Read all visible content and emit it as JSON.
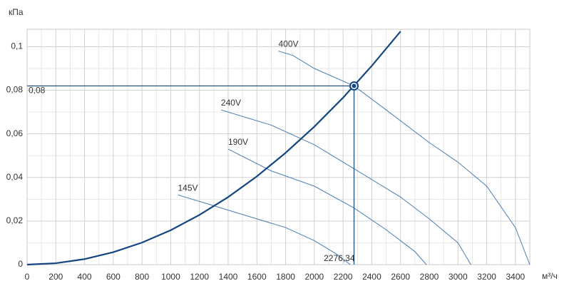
{
  "chart_data": {
    "type": "line",
    "y_axis_label": "кПа",
    "x_axis_label": "м³/ч",
    "xlim": [
      0,
      3500
    ],
    "ylim": [
      0,
      0.108
    ],
    "xticks": [
      0,
      200,
      400,
      600,
      800,
      1000,
      1200,
      1400,
      1600,
      1800,
      2000,
      2200,
      2400,
      2600,
      2800,
      3000,
      3200,
      3400
    ],
    "yticks": [
      0,
      {
        "value": 0.02,
        "label": "0,02"
      },
      {
        "value": 0.04,
        "label": "0,04"
      },
      {
        "value": 0.06,
        "label": "0,06"
      },
      {
        "value": 0.08,
        "label": "0,08"
      },
      {
        "value": 0.1,
        "label": "0,1"
      }
    ],
    "grid": true,
    "series": [
      {
        "color": "#4a7db3",
        "label": "400V",
        "x": [
          1750,
          1850,
          2000,
          2276,
          2500,
          2800,
          3000,
          3200,
          3400,
          3500
        ],
        "values": [
          0.098,
          0.096,
          0.09,
          0.082,
          0.071,
          0.056,
          0.047,
          0.036,
          0.017,
          0
        ]
      },
      {
        "color": "#4a7db3",
        "label": "240V",
        "x": [
          1350,
          1500,
          1700,
          2000,
          2276,
          2600,
          2800,
          3000,
          3090
        ],
        "values": [
          0.071,
          0.068,
          0.064,
          0.055,
          0.044,
          0.031,
          0.021,
          0.01,
          0
        ]
      },
      {
        "color": "#4a7db3",
        "label": "190V",
        "x": [
          1400,
          1700,
          2000,
          2276,
          2500,
          2700,
          2780
        ],
        "values": [
          0.053,
          0.043,
          0.036,
          0.026,
          0.016,
          0.006,
          0
        ]
      },
      {
        "color": "#4a7db3",
        "label": "145V",
        "x": [
          1050,
          1300,
          1500,
          1800,
          2000,
          2150,
          2250
        ],
        "values": [
          0.032,
          0.027,
          0.023,
          0.017,
          0.011,
          0.005,
          0
        ]
      },
      {
        "color": "#14467f",
        "x": [
          0,
          200,
          400,
          600,
          800,
          1000,
          1200,
          1400,
          1600,
          1800,
          2000,
          2200,
          2400,
          2600
        ],
        "values": [
          0,
          0.00063,
          0.00253,
          0.0057,
          0.0101,
          0.0158,
          0.0228,
          0.031,
          0.0405,
          0.0513,
          0.0633,
          0.0766,
          0.0912,
          0.107
        ]
      }
    ],
    "operating_point": {
      "x": 2276.34,
      "y": 0.082,
      "x_label": "2276,34",
      "y_label": "0,08",
      "color": "#14467f"
    }
  }
}
